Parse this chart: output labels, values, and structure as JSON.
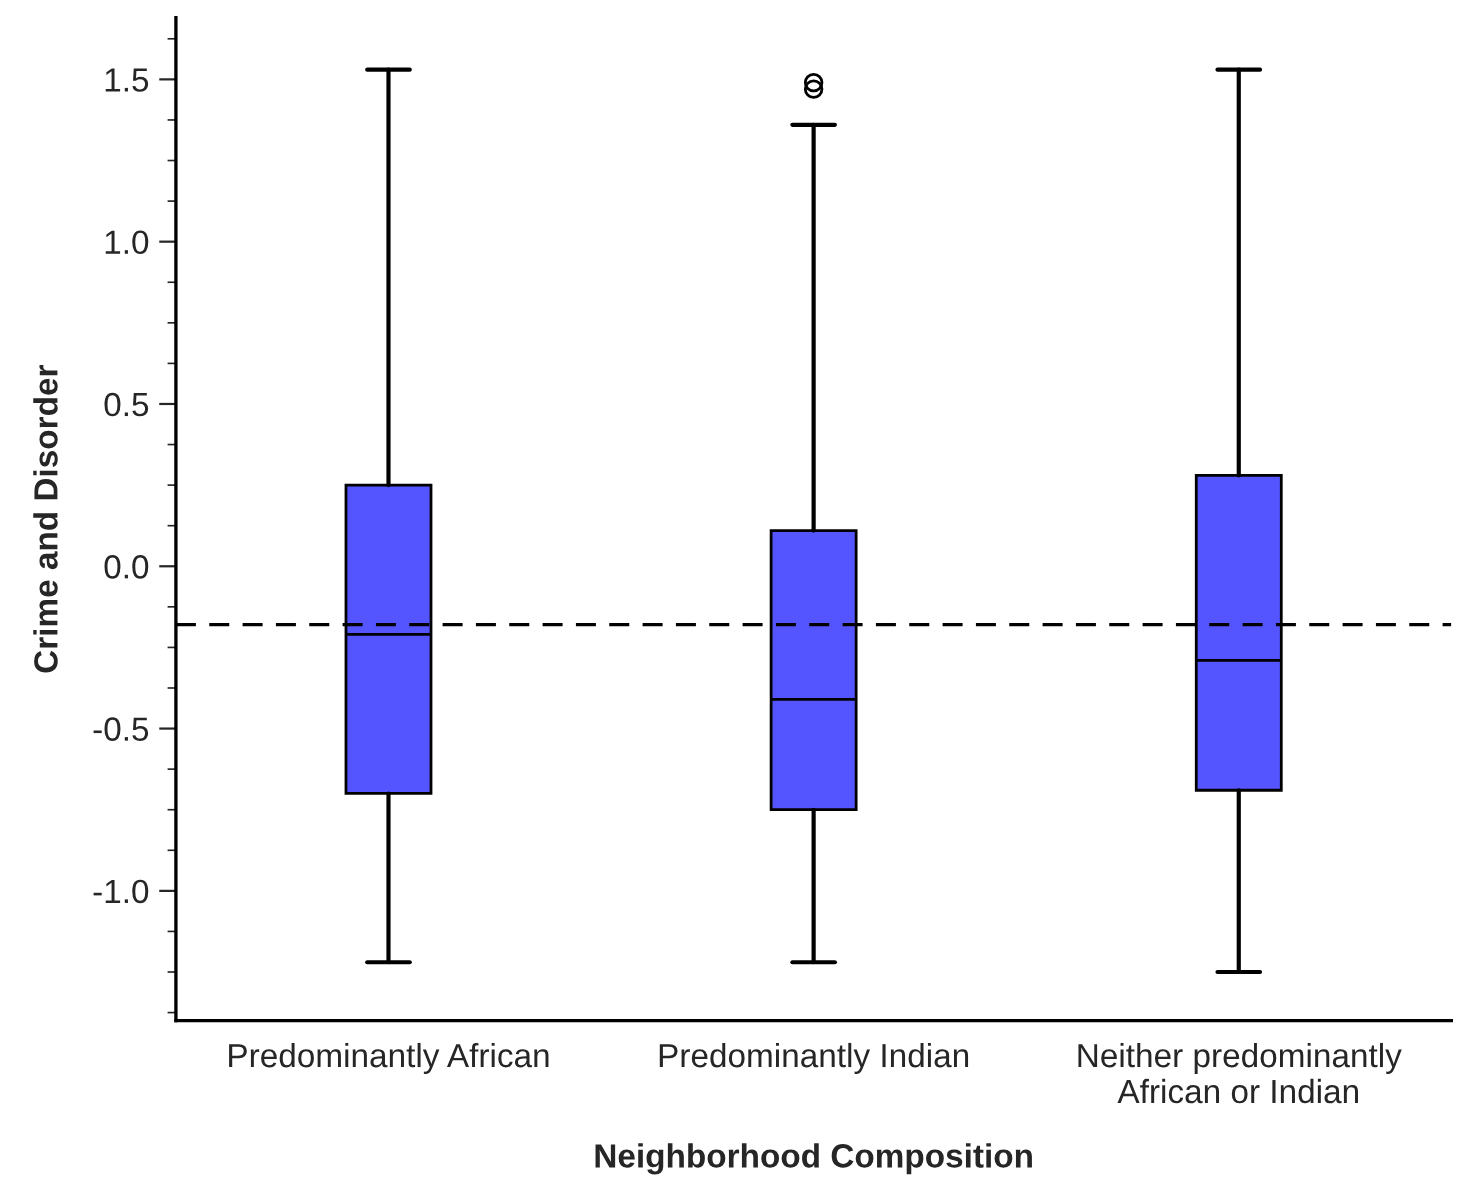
{
  "chart_data": {
    "type": "box",
    "xlabel": "Neighborhood Composition",
    "ylabel": "Crime and Disorder",
    "categories": [
      "Predominantly African",
      "Predominantly Indian",
      "Neither predominantly\nAfrican or Indian"
    ],
    "color": "#5555ff",
    "boxes": [
      {
        "low": -1.22,
        "q1": -0.7,
        "median": -0.21,
        "q3": 0.25,
        "high": 1.53
      },
      {
        "low": -1.22,
        "q1": -0.75,
        "median": -0.41,
        "q3": 0.11,
        "high": 1.36,
        "outliers": [
          1.49,
          1.47
        ]
      },
      {
        "low": -1.25,
        "q1": -0.69,
        "median": -0.29,
        "q3": 0.28,
        "high": 1.53
      }
    ],
    "ylim": [
      -1.4,
      1.69
    ],
    "yticks": [
      {
        "value": -1.0,
        "label": "-1.0"
      },
      {
        "value": -0.5,
        "label": "-0.5"
      },
      {
        "value": 0.0,
        "label": "0.0"
      },
      {
        "value": 0.5,
        "label": "0.5"
      },
      {
        "value": 1.0,
        "label": "1.0"
      },
      {
        "value": 1.5,
        "label": "1.5"
      }
    ],
    "ref_lines": [
      {
        "axis": "y",
        "value": -0.18,
        "line_style": "dashed",
        "color": "#000000"
      }
    ],
    "grid": false,
    "legend": false
  }
}
